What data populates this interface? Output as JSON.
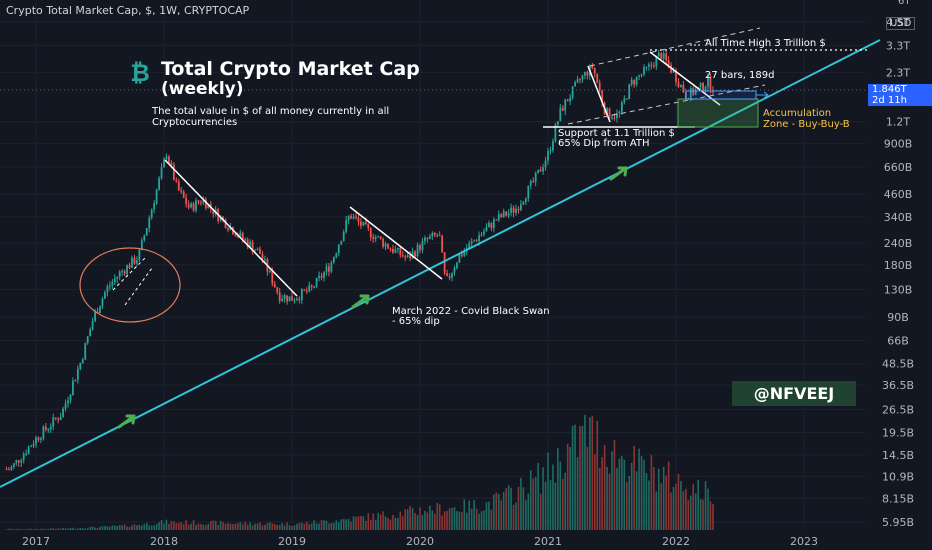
{
  "header": {
    "symbol_line": "Crypto Total Market Cap, $, 1W, CRYPTOCAP"
  },
  "currency": {
    "label": "USD",
    "top_tick": "6T"
  },
  "title": {
    "line1": "Total Crypto Market Cap",
    "line2": "(weekly)"
  },
  "subtitle": {
    "line1": "The total value in $ of all money currently in all",
    "line2": "Cryptocurrencies"
  },
  "price_badge": {
    "value": "1.846T",
    "countdown": "2d 11h"
  },
  "watermark": "@NFVEEJ",
  "annotations": {
    "ath": "All Time High 3 Trillion $",
    "bars": "27 bars, 189d",
    "support_line1": "Support at 1.1 Trillion $",
    "support_line2": "65% Dip from ATH",
    "covid_line1": "March 2022 - Covid Black Swan",
    "covid_line2": "- 65% dip",
    "accum_line1": "Accumulation",
    "accum_line2": "Zone - Buy-Buy-B"
  },
  "colors": {
    "background": "#131722",
    "up": "#26a69a",
    "down": "#ef5350",
    "trendline": "#31c4d6",
    "arrow": "#4caf50",
    "accumulation": "#f5c542",
    "circle": "#e87c5e",
    "badge": "#2962ff"
  },
  "chart_data": {
    "type": "candlestick",
    "timeframe": "1W",
    "y_scale": "log",
    "y_ticks": [
      "4.5T",
      "3.3T",
      "2.3T",
      "1.2T",
      "900B",
      "660B",
      "460B",
      "340B",
      "240B",
      "180B",
      "130B",
      "90B",
      "66B",
      "48.5B",
      "36.5B",
      "26.5B",
      "19.5B",
      "14.5B",
      "10.9B",
      "8.15B",
      "5.95B"
    ],
    "y_tick_values": [
      4500,
      3300,
      2300,
      1200,
      900,
      660,
      460,
      340,
      240,
      180,
      130,
      90,
      66,
      48.5,
      36.5,
      26.5,
      19.5,
      14.5,
      10.9,
      8.15,
      5.95
    ],
    "x_ticks": [
      "2017",
      "2018",
      "2019",
      "2020",
      "2021",
      "2022",
      "2023"
    ],
    "x_tick_values": [
      2017,
      2018,
      2019,
      2020,
      2021,
      2022,
      2023
    ],
    "last_value_billions": 1846,
    "price_path": [
      {
        "t": 2016.8,
        "v": 12
      },
      {
        "t": 2017.0,
        "v": 18
      },
      {
        "t": 2017.2,
        "v": 25
      },
      {
        "t": 2017.35,
        "v": 50
      },
      {
        "t": 2017.45,
        "v": 90
      },
      {
        "t": 2017.55,
        "v": 130
      },
      {
        "t": 2017.65,
        "v": 160
      },
      {
        "t": 2017.8,
        "v": 200
      },
      {
        "t": 2017.92,
        "v": 420
      },
      {
        "t": 2018.02,
        "v": 800
      },
      {
        "t": 2018.1,
        "v": 500
      },
      {
        "t": 2018.2,
        "v": 380
      },
      {
        "t": 2018.3,
        "v": 430
      },
      {
        "t": 2018.45,
        "v": 330
      },
      {
        "t": 2018.6,
        "v": 260
      },
      {
        "t": 2018.75,
        "v": 210
      },
      {
        "t": 2018.9,
        "v": 120
      },
      {
        "t": 2019.0,
        "v": 115
      },
      {
        "t": 2019.15,
        "v": 130
      },
      {
        "t": 2019.3,
        "v": 180
      },
      {
        "t": 2019.45,
        "v": 350
      },
      {
        "t": 2019.6,
        "v": 280
      },
      {
        "t": 2019.75,
        "v": 230
      },
      {
        "t": 2019.9,
        "v": 195
      },
      {
        "t": 2020.05,
        "v": 250
      },
      {
        "t": 2020.15,
        "v": 270
      },
      {
        "t": 2020.2,
        "v": 140
      },
      {
        "t": 2020.3,
        "v": 200
      },
      {
        "t": 2020.45,
        "v": 260
      },
      {
        "t": 2020.6,
        "v": 330
      },
      {
        "t": 2020.75,
        "v": 380
      },
      {
        "t": 2020.9,
        "v": 560
      },
      {
        "t": 2021.0,
        "v": 780
      },
      {
        "t": 2021.1,
        "v": 1400
      },
      {
        "t": 2021.25,
        "v": 2100
      },
      {
        "t": 2021.35,
        "v": 2500
      },
      {
        "t": 2021.45,
        "v": 1350
      },
      {
        "t": 2021.55,
        "v": 1300
      },
      {
        "t": 2021.65,
        "v": 2000
      },
      {
        "t": 2021.8,
        "v": 2500
      },
      {
        "t": 2021.88,
        "v": 2950
      },
      {
        "t": 2021.98,
        "v": 2300
      },
      {
        "t": 2022.08,
        "v": 1700
      },
      {
        "t": 2022.18,
        "v": 1850
      },
      {
        "t": 2022.25,
        "v": 2050
      },
      {
        "t": 2022.3,
        "v": 1846
      }
    ],
    "volume_relative": [
      {
        "t": 2017.0,
        "v": 0.01
      },
      {
        "t": 2017.5,
        "v": 0.03
      },
      {
        "t": 2018.0,
        "v": 0.08
      },
      {
        "t": 2018.5,
        "v": 0.07
      },
      {
        "t": 2019.0,
        "v": 0.06
      },
      {
        "t": 2019.5,
        "v": 0.12
      },
      {
        "t": 2020.0,
        "v": 0.2
      },
      {
        "t": 2020.5,
        "v": 0.25
      },
      {
        "t": 2021.0,
        "v": 0.6
      },
      {
        "t": 2021.3,
        "v": 1.0
      },
      {
        "t": 2021.6,
        "v": 0.7
      },
      {
        "t": 2021.9,
        "v": 0.55
      },
      {
        "t": 2022.3,
        "v": 0.35
      }
    ]
  }
}
